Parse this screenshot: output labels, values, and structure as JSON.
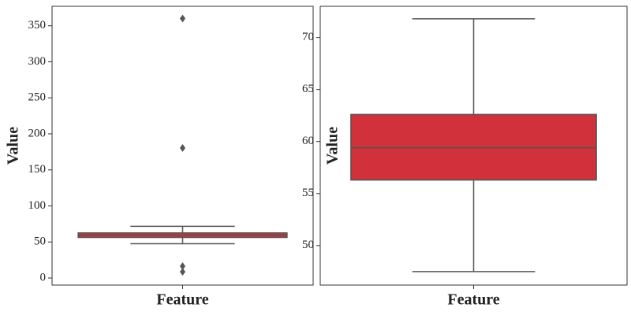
{
  "chart_data": [
    {
      "type": "box",
      "xlabel": "Feature",
      "ylabel": "Value",
      "ylim": [
        -9.8,
        377
      ],
      "yticks": [
        0,
        50,
        100,
        150,
        200,
        250,
        300,
        350
      ],
      "color": "#d0313a",
      "box": {
        "whislo": 47.5,
        "q1": 56.3,
        "med": 59.4,
        "q3": 62.6,
        "whishi": 71.8,
        "fliers": [
          360,
          180.5,
          16.4,
          8.7
        ]
      }
    },
    {
      "type": "box",
      "xlabel": "Feature",
      "ylabel": "Value",
      "ylim": [
        46.2,
        73.0
      ],
      "yticks": [
        50,
        55,
        60,
        65,
        70
      ],
      "color": "#d0313a",
      "box": {
        "whislo": 47.5,
        "q1": 56.3,
        "med": 59.4,
        "q3": 62.6,
        "whishi": 71.8,
        "fliers": []
      }
    }
  ]
}
